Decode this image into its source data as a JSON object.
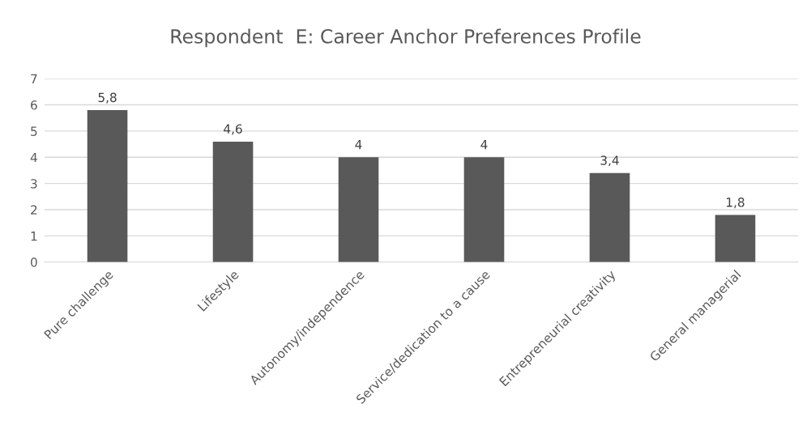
{
  "chart_data": {
    "type": "bar",
    "title": "Respondent  E: Career Anchor Preferences Profile",
    "categories": [
      "Pure challenge",
      "Lifestyle",
      "Autonomy/independence",
      "Service/dedication to a cause",
      "Entrepreneurial creativity",
      "General managerial"
    ],
    "values": [
      5.8,
      4.6,
      4,
      4,
      3.4,
      1.8
    ],
    "value_labels": [
      "5,8",
      "4,6",
      "4",
      "4",
      "3,4",
      "1,8"
    ],
    "color": "#595959",
    "ylim": [
      0,
      7
    ],
    "yticks": [
      0,
      1,
      2,
      3,
      4,
      5,
      6,
      7
    ],
    "grid": "y",
    "legend": false
  }
}
